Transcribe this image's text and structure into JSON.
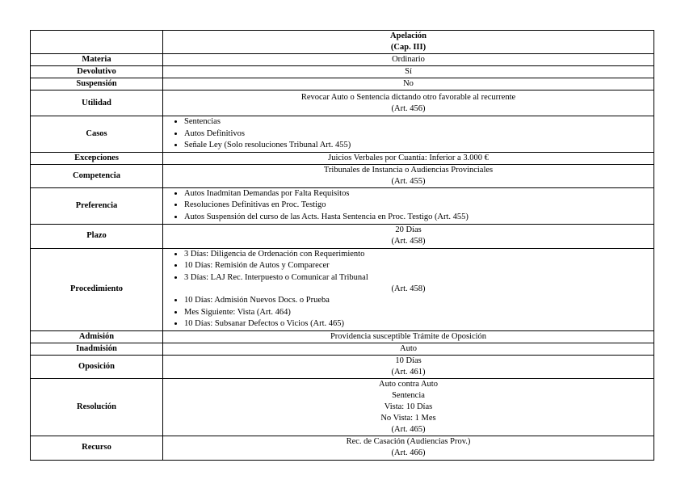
{
  "header": {
    "lines": [
      "Apelación",
      "(Cap. III)"
    ]
  },
  "rows": [
    {
      "label": "Materia",
      "lines": [
        "Ordinario"
      ]
    },
    {
      "label": "Devolutivo",
      "lines": [
        "Sí"
      ]
    },
    {
      "label": "Suspensión",
      "lines": [
        "No"
      ]
    },
    {
      "label": "Utilidad",
      "lines": [
        "Revocar Auto o Sentencia dictando otro favorable al recurrente",
        "(Art. 456)"
      ]
    },
    {
      "label": "Casos",
      "bullets": [
        "Sentencias",
        "Autos Definitivos",
        "Señale Ley (Solo resoluciones Tribunal Art. 455)"
      ]
    },
    {
      "label": "Excepciones",
      "lines": [
        "Juicios Verbales por Cuantía: Inferior a 3.000 €"
      ]
    },
    {
      "label": "Competencia",
      "lines": [
        "Tribunales de Instancia o Audiencias Provinciales",
        "(Art. 455)"
      ]
    },
    {
      "label": "Preferencia",
      "bullets": [
        "Autos Inadmitan Demandas por Falta Requisitos",
        "Resoluciones Definitivas en Proc. Testigo",
        "Autos Suspensión del curso de las Acts. Hasta Sentencia en Proc. Testigo (Art. 455)"
      ]
    },
    {
      "label": "Plazo",
      "lines": [
        "20 Días",
        "(Art. 458)"
      ]
    },
    {
      "label": "Procedimiento",
      "bullets": [
        "3 Días: Diligencia de Ordenación con Requerimiento",
        "10 Días: Remisión  de Autos y Comparecer",
        "3 Días: LAJ Rec. Interpuesto o Comunicar al Tribunal"
      ],
      "middle": "(Art. 458)",
      "bullets2": [
        "10 Días: Admisión Nuevos Docs. o Prueba",
        "Mes Siguiente: Vista (Art. 464)",
        "10 Días: Subsanar Defectos o Vicios (Art. 465)"
      ]
    },
    {
      "label": "Admisión",
      "lines": [
        "Providencia susceptible Trámite de Oposición"
      ]
    },
    {
      "label": "Inadmisión",
      "lines": [
        "Auto"
      ]
    },
    {
      "label": "Oposición",
      "lines": [
        "10 Días",
        "(Art. 461)"
      ]
    },
    {
      "label": "Resolución",
      "lines": [
        "Auto contra Auto",
        "Sentencia",
        "Vista: 10 Días",
        "No Vista: 1 Mes",
        "(Art. 465)"
      ]
    },
    {
      "label": "Recurso",
      "lines": [
        "Rec. de Casación (Audiencias Prov.)",
        "(Art. 466)"
      ]
    }
  ]
}
